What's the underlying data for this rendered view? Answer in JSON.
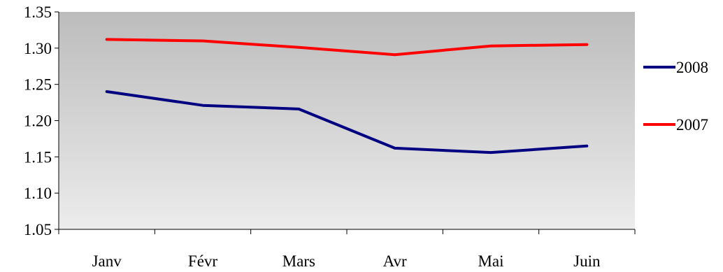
{
  "chart_data": {
    "type": "line",
    "categories": [
      "Janv",
      "Févr",
      "Mars",
      "Avr",
      "Mai",
      "Juin"
    ],
    "series": [
      {
        "name": "2008",
        "color": "#000080",
        "values": [
          1.24,
          1.221,
          1.216,
          1.162,
          1.156,
          1.165
        ]
      },
      {
        "name": "2007",
        "color": "#ff0000",
        "values": [
          1.312,
          1.31,
          1.301,
          1.291,
          1.303,
          1.305
        ]
      }
    ],
    "yticks": [
      "1.05",
      "1.10",
      "1.15",
      "1.20",
      "1.25",
      "1.30",
      "1.35"
    ],
    "ylim": [
      1.05,
      1.35
    ],
    "title": "",
    "xlabel": "",
    "ylabel": "",
    "grid": false,
    "legend": "right",
    "plot_background": "gradient gray to light gray"
  }
}
